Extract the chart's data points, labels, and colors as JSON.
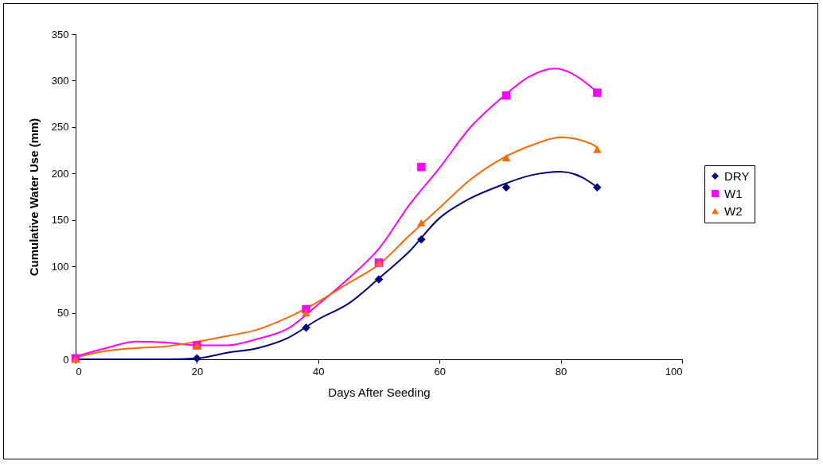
{
  "chart_data": {
    "type": "scatter",
    "xlabel": "Days After Seeding",
    "ylabel": "Cumulative Water Use (mm)",
    "x": [
      0,
      20,
      38,
      50,
      57,
      71,
      86
    ],
    "xlim": [
      0,
      100
    ],
    "xticks": [
      0,
      20,
      40,
      60,
      80,
      100
    ],
    "ylim": [
      0,
      350
    ],
    "yticks": [
      0,
      50,
      100,
      150,
      200,
      250,
      300,
      350
    ],
    "grid": false,
    "legend": "right",
    "series": [
      {
        "name": "DRY",
        "color": "#000080",
        "marker": "diamond",
        "values": [
          0,
          1,
          34,
          86,
          129,
          185,
          185
        ]
      },
      {
        "name": "W1",
        "color": "#ff00ff",
        "marker": "square",
        "values": [
          1,
          15,
          54,
          104,
          207,
          284,
          287
        ]
      },
      {
        "name": "W2",
        "color": "#ff6600",
        "marker": "triangle",
        "values": [
          0,
          15,
          50,
          104,
          147,
          217,
          226
        ]
      },
      {
        "type": "line",
        "color": "#000080",
        "x": [
          0,
          5,
          10,
          15,
          20,
          25,
          30,
          35,
          40,
          45,
          50,
          55,
          60,
          65,
          70,
          75,
          80,
          85,
          86
        ],
        "values": [
          0,
          0,
          0,
          0,
          1,
          7,
          12,
          23,
          43,
          60,
          87,
          116,
          152,
          173,
          187,
          198,
          202,
          190,
          185
        ]
      },
      {
        "type": "line",
        "color": "#ff00ff",
        "x": [
          0,
          5,
          10,
          15,
          20,
          25,
          30,
          35,
          40,
          45,
          50,
          55,
          60,
          65,
          70,
          75,
          79,
          85,
          86
        ],
        "values": [
          3,
          12,
          19,
          18,
          15,
          15,
          22,
          33,
          59,
          87,
          119,
          166,
          206,
          249,
          280,
          305,
          313,
          293,
          287
        ]
      },
      {
        "type": "line",
        "color": "#ff6600",
        "x": [
          0,
          5,
          10,
          15,
          20,
          25,
          30,
          35,
          40,
          45,
          50,
          55,
          60,
          65,
          70,
          75,
          80,
          85,
          86
        ],
        "values": [
          2,
          9,
          12,
          14,
          19,
          25,
          32,
          45,
          62,
          82,
          102,
          133,
          163,
          193,
          215,
          230,
          239,
          232,
          228
        ]
      }
    ]
  }
}
